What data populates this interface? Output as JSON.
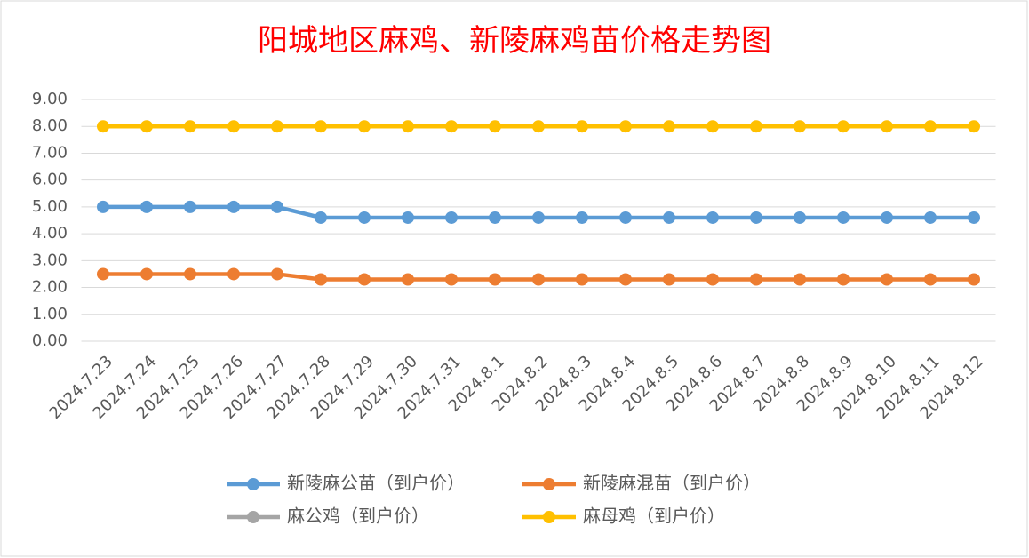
{
  "chart_data": {
    "type": "line",
    "title": "阳城地区麻鸡、新陵麻鸡苗价格走势图",
    "categories": [
      "2024.7.23",
      "2024.7.24",
      "2024.7.25",
      "2024.7.26",
      "2024.7.27",
      "2024.7.28",
      "2024.7.29",
      "2024.7.30",
      "2024.7.31",
      "2024.8.1",
      "2024.8.2",
      "2024.8.3",
      "2024.8.4",
      "2024.8.5",
      "2024.8.6",
      "2024.8.7",
      "2024.8.8",
      "2024.8.9",
      "2024.8.10",
      "2024.8.11",
      "2024.8.12"
    ],
    "series": [
      {
        "name": "新陵麻公苗（到户价）",
        "color": "#5b9bd5",
        "values": [
          5,
          5,
          5,
          5,
          5,
          4.6,
          4.6,
          4.6,
          4.6,
          4.6,
          4.6,
          4.6,
          4.6,
          4.6,
          4.6,
          4.6,
          4.6,
          4.6,
          4.6,
          4.6,
          4.6
        ]
      },
      {
        "name": "新陵麻混苗（到户价）",
        "color": "#ed7d31",
        "values": [
          2.5,
          2.5,
          2.5,
          2.5,
          2.5,
          2.3,
          2.3,
          2.3,
          2.3,
          2.3,
          2.3,
          2.3,
          2.3,
          2.3,
          2.3,
          2.3,
          2.3,
          2.3,
          2.3,
          2.3,
          2.3
        ]
      },
      {
        "name": "麻公鸡（到户价）",
        "color": "#a5a5a5",
        "values": [
          null,
          null,
          null,
          null,
          null,
          null,
          null,
          null,
          null,
          null,
          null,
          null,
          null,
          null,
          null,
          null,
          null,
          null,
          null,
          null,
          null
        ]
      },
      {
        "name": "麻母鸡（到户价）",
        "color": "#ffc000",
        "values": [
          8,
          8,
          8,
          8,
          8,
          8,
          8,
          8,
          8,
          8,
          8,
          8,
          8,
          8,
          8,
          8,
          8,
          8,
          8,
          8,
          8
        ]
      }
    ],
    "ylim": [
      0,
      9
    ],
    "yticks": [
      {
        "value": 0,
        "label": "0.00"
      },
      {
        "value": 1,
        "label": "1.00"
      },
      {
        "value": 2,
        "label": "2.00"
      },
      {
        "value": 3,
        "label": "3.00"
      },
      {
        "value": 4,
        "label": "4.00"
      },
      {
        "value": 5,
        "label": "5.00"
      },
      {
        "value": 6,
        "label": "6.00"
      },
      {
        "value": 7,
        "label": "7.00"
      },
      {
        "value": 8,
        "label": "8.00"
      },
      {
        "value": 9,
        "label": "9.00"
      }
    ],
    "grid": true,
    "legend": "bottom"
  }
}
